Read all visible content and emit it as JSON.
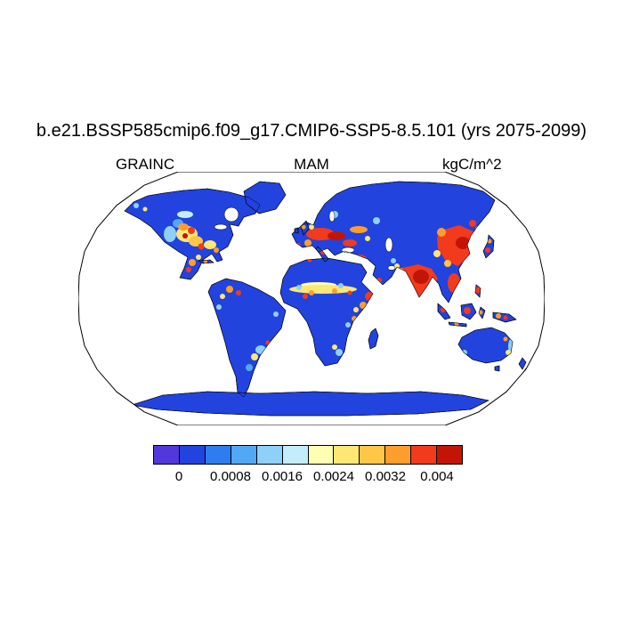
{
  "title": "b.e21.BSSP585cmip6.f09_g17.CMIP6-SSP5-8.5.101 (yrs 2075-2099)",
  "subtitles": {
    "left": "GRAINC",
    "center": "MAM",
    "right": "kgC/m^2"
  },
  "colorbar": {
    "colors": [
      "#5238dc",
      "#2243de",
      "#2f7cf0",
      "#52a8f5",
      "#8ed0f8",
      "#c4ecfa",
      "#ffffb3",
      "#ffe775",
      "#ffc647",
      "#ff9d2e",
      "#f23a1d",
      "#c21507"
    ],
    "tick_labels": [
      "0",
      "0.0008",
      "0.0016",
      "0.0024",
      "0.0032",
      "0.004"
    ]
  },
  "chart_data": {
    "type": "heatmap",
    "title": "b.e21.BSSP585cmip6.f09_g17.CMIP6-SSP5-8.5.101 (yrs 2075-2099)",
    "variable": "GRAINC",
    "season": "MAM",
    "units": "kgC/m^2",
    "projection": "robinson",
    "map_extent": "global",
    "ocean_color": "#ffffff",
    "land_low_value_color": "#2243de",
    "levels": [
      0,
      0.0004,
      0.0008,
      0.0012,
      0.0016,
      0.002,
      0.0024,
      0.0028,
      0.0032,
      0.0036,
      0.004
    ],
    "level_colors": [
      "#5238dc",
      "#2243de",
      "#2f7cf0",
      "#52a8f5",
      "#8ed0f8",
      "#c4ecfa",
      "#ffffb3",
      "#ffe775",
      "#ffc647",
      "#ff9d2e",
      "#f23a1d",
      "#c21507"
    ],
    "colorbar_tick_labels": [
      "0",
      "0.0008",
      "0.0016",
      "0.0024",
      "0.0032",
      "0.004"
    ],
    "high_value_regions": [
      "Central and eastern United States",
      "Mexico highlands",
      "Northern South America",
      "Southeastern South America",
      "Western and central Europe",
      "Mediterranean and Turkey",
      "Sahel belt",
      "Horn of Africa",
      "India",
      "Eastern China",
      "Southeast Asia",
      "Indonesia",
      "Korea and Japan"
    ],
    "low_value_regions": [
      "Canada and high-latitude land",
      "Amazon basin",
      "Central Africa",
      "Siberia",
      "Tibet",
      "Australia interior",
      "Antarctica",
      "Greenland"
    ]
  }
}
